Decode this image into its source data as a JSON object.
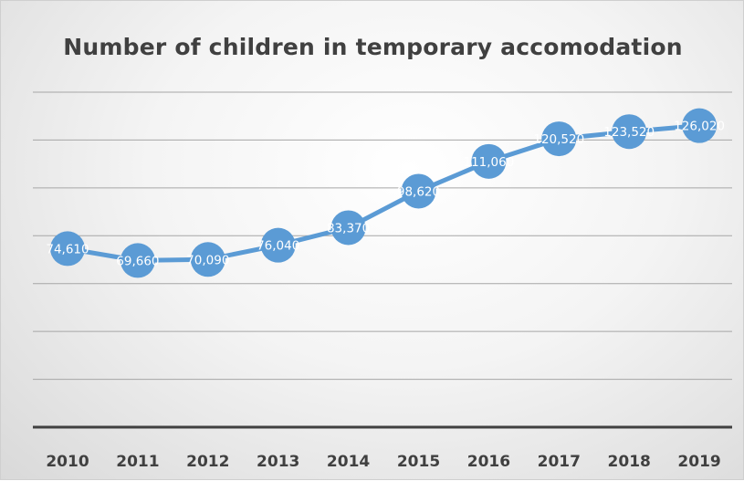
{
  "chart_data": {
    "type": "line",
    "title": "Number of children in temporary accomodation",
    "xlabel": "",
    "ylabel": "",
    "categories": [
      "2010",
      "2011",
      "2012",
      "2013",
      "2014",
      "2015",
      "2016",
      "2017",
      "2018",
      "2019"
    ],
    "series": [
      {
        "values": [
          74610,
          69660,
          70090,
          76040,
          83370,
          98620,
          111060,
          120520,
          123520,
          126020
        ],
        "labels": [
          "74,610",
          "69,660",
          "70,090",
          "76,040",
          "83,370",
          "98,620",
          "111,060",
          "120,520",
          "123,520",
          "126,020"
        ],
        "color": "#5B9BD5"
      }
    ],
    "ylim": [
      0,
      140000
    ],
    "gridlines": true,
    "legend": "none",
    "colors": {
      "line": "#5B9BD5",
      "grid": "#a6a6a6",
      "axis": "#404040",
      "text": "#404040"
    }
  }
}
